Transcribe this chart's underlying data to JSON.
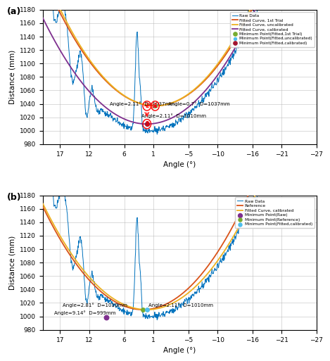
{
  "title_a": "(a)",
  "title_b": "(b)",
  "xlabel": "Angle (°)",
  "ylabel": "Distance (mm)",
  "ylim": [
    980,
    1180
  ],
  "xlim_left": 20,
  "xlim_right": -27,
  "yticks": [
    980,
    1000,
    1020,
    1040,
    1060,
    1080,
    1100,
    1120,
    1140,
    1160,
    1180
  ],
  "xticks": [
    17,
    12,
    6,
    1,
    -5,
    -10,
    -16,
    -21,
    -27
  ],
  "colors": {
    "raw": "#0072BD",
    "fitted1st": "#D95319",
    "fitted_uncal": "#EDB120",
    "fitted_cal_a": "#7E2F8E",
    "fitted_cal_b": "#EDB120",
    "reference": "#D95319",
    "min_1st": "#77AC30",
    "min_uncal": "#4DBEEE",
    "min_cal": "#A2142F",
    "min_raw_b": "#7E2F8E",
    "min_ref_b": "#77AC30",
    "min_cal_b": "#4DBEEE"
  }
}
